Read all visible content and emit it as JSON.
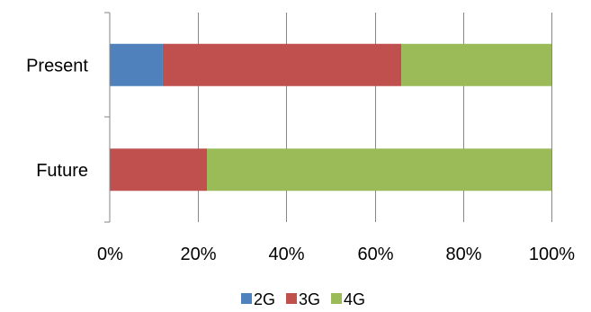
{
  "chart_data": {
    "type": "bar",
    "orientation": "horizontal",
    "stacked": "percent",
    "categories": [
      "Present",
      "Future"
    ],
    "series": [
      {
        "name": "2G",
        "color": "#4F81BD",
        "values": [
          12,
          0
        ]
      },
      {
        "name": "3G",
        "color": "#C0504D",
        "values": [
          54,
          22
        ]
      },
      {
        "name": "4G",
        "color": "#9BBB59",
        "values": [
          34,
          78
        ]
      }
    ],
    "xlim": [
      0,
      100
    ],
    "x_ticks": [
      "0%",
      "20%",
      "40%",
      "60%",
      "80%",
      "100%"
    ],
    "grid": true,
    "legend": "bottom"
  }
}
